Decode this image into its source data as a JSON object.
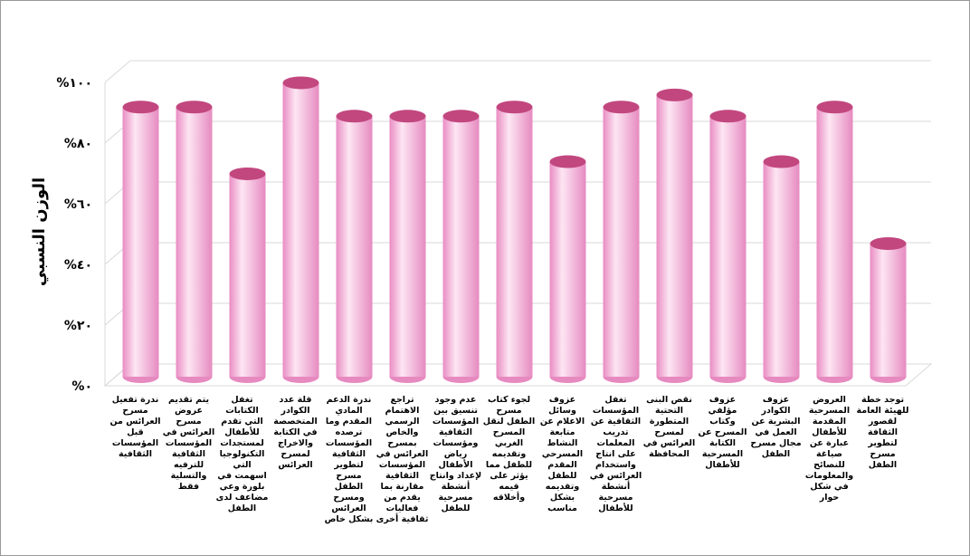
{
  "chart_data": {
    "type": "bar",
    "y_label": "الوزن النسبي",
    "categories": [
      "ندرة تفعيل مسرح العرائس من قبل المؤسسات الثقافية",
      "يتم تقديم عروض مسرح العرائس في المؤسسات الثقافية للترفيه والتسلية فقط",
      "تغفل الكتابات التي تقدم للأطفال لمستجدات التكنولوجيا التي اسهمت في بلورة وعي مضاعف لدى الطفل",
      "قلة عدد الكوادر المتخصصة في الكتابة والاخراج لمسرح العرائس",
      "ندرة الدعم المادي المقدم وما ترصده المؤسسات الثقافية لتطوير مسرح الطفل ومسرح العرائس بشكل خاص",
      "تراجع الاهتمام الرسمي والخاص بمسرح العرائس في المؤسسات الثقافية مقارنة بما يقدم من فعاليات ثقافية أخرى",
      "عدم وجود تنسيق بين المؤسسات الثقافية ومؤسسات رياض الأطفال لإعداد وانتاج أنشطة مسرحية للطفل",
      "لجوء كتاب مسرح الطفل لنقل المسرح الغربي وتقديمه للطفل مما يؤثر على قيمه وأخلاقه",
      "عزوف وسائل الاعلام عن متابعة النشاط المسرحي المقدم للطفل وتقديمه بشكل مناسب",
      "تغفل المؤسسات الثقافية عن تدريب المعلمات على انتاج واستخدام العرائس في أنشطة مسرحية للأطفال",
      "نقص البنى التحتية المتطورة لمسرح العرائس في المحافظة",
      "عزوف مؤلفي وكتاب المسرح عن الكتابة المسرحية للأطفال",
      "عزوف الكوادر البشرية عن العمل في مجال مسرح الطفل",
      "العروض المسرحية المقدمة للأطفال عبارة عن صياغة للنصائح والمعلومات في شكل حوار",
      "توجد خطة للهيئة العامة لقصور الثقافة لتطوير مسرح الطفل"
    ],
    "values": [
      89,
      89,
      67,
      97,
      86,
      86,
      86,
      89,
      71,
      89,
      93,
      86,
      71,
      89,
      44
    ],
    "color": "#f4b6dc",
    "top_color": "#c2477f",
    "ylim": [
      0,
      100
    ],
    "yticks": [
      {
        "value": 0,
        "label": "%٠"
      },
      {
        "value": 20,
        "label": "%٢٠"
      },
      {
        "value": 40,
        "label": "%٤٠"
      },
      {
        "value": 60,
        "label": "%٦٠"
      },
      {
        "value": 80,
        "label": "%٨٠"
      },
      {
        "value": 100,
        "label": "%١٠٠"
      }
    ],
    "grid": true
  }
}
